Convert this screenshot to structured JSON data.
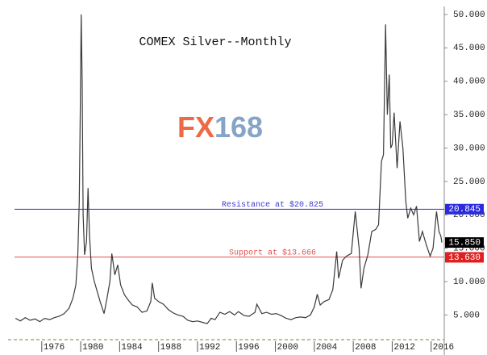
{
  "chart_data": {
    "type": "line",
    "title": "COMEX Silver--Monthly",
    "watermark": [
      "FX",
      "168"
    ],
    "color": "#3a3a3a",
    "x": [
      1973.3,
      1973.8,
      1974.3,
      1974.8,
      1975.3,
      1975.8,
      1976.3,
      1976.8,
      1977.3,
      1977.8,
      1978.3,
      1978.8,
      1979.2,
      1979.5,
      1979.7,
      1979.85,
      1979.95,
      1980.05,
      1980.15,
      1980.25,
      1980.4,
      1980.6,
      1980.75,
      1980.9,
      1981.1,
      1981.4,
      1981.7,
      1982.0,
      1982.4,
      1982.7,
      1983.0,
      1983.2,
      1983.5,
      1983.8,
      1984.1,
      1984.5,
      1984.9,
      1985.3,
      1985.8,
      1986.3,
      1986.8,
      1987.2,
      1987.35,
      1987.6,
      1988.0,
      1988.5,
      1989.0,
      1989.5,
      1990.0,
      1990.5,
      1991.0,
      1991.5,
      1992.0,
      1992.5,
      1993.0,
      1993.4,
      1993.8,
      1994.3,
      1994.8,
      1995.3,
      1995.8,
      1996.2,
      1996.8,
      1997.3,
      1997.9,
      1998.1,
      1998.6,
      1999.1,
      1999.6,
      2000.1,
      2000.6,
      2001.1,
      2001.6,
      2002.1,
      2002.6,
      2003.1,
      2003.6,
      2004.0,
      2004.3,
      2004.6,
      2005.0,
      2005.5,
      2005.9,
      2006.3,
      2006.5,
      2006.9,
      2007.3,
      2007.8,
      2008.2,
      2008.6,
      2008.8,
      2009.1,
      2009.5,
      2009.9,
      2010.3,
      2010.6,
      2010.9,
      2011.1,
      2011.32,
      2011.5,
      2011.7,
      2011.85,
      2012.0,
      2012.2,
      2012.5,
      2012.8,
      2013.1,
      2013.4,
      2013.6,
      2013.9,
      2014.2,
      2014.5,
      2014.8,
      2015.1,
      2015.5,
      2015.9,
      2016.2,
      2016.55,
      2016.8,
      2017.0,
      2017.1
    ],
    "values": [
      4.5,
      4.1,
      4.6,
      4.2,
      4.4,
      4.0,
      4.5,
      4.3,
      4.6,
      4.8,
      5.2,
      6.0,
      7.5,
      9.5,
      14,
      22,
      35,
      50,
      40,
      20,
      14,
      16,
      24,
      17,
      12,
      10,
      8.5,
      7,
      5.2,
      7.5,
      10,
      14.2,
      11,
      12.5,
      9.5,
      8,
      7.2,
      6.5,
      6.2,
      5.4,
      5.6,
      7,
      9.8,
      7.5,
      7,
      6.6,
      5.8,
      5.3,
      5.0,
      4.8,
      4.2,
      4.0,
      4.1,
      3.9,
      3.7,
      4.5,
      4.3,
      5.4,
      5.1,
      5.5,
      5.0,
      5.5,
      4.9,
      4.8,
      5.4,
      6.6,
      5.2,
      5.4,
      5.1,
      5.2,
      4.9,
      4.5,
      4.3,
      4.6,
      4.7,
      4.6,
      5.0,
      6.2,
      8.1,
      6.5,
      7.0,
      7.3,
      8.8,
      14.5,
      10.5,
      13.2,
      13.8,
      14.2,
      20.5,
      15,
      9,
      12,
      14,
      17.5,
      17.8,
      18.5,
      28,
      29,
      48.5,
      35,
      41,
      30,
      30.5,
      35.3,
      27,
      34,
      30,
      22,
      19.5,
      21,
      20,
      21.3,
      16,
      17.5,
      15.5,
      13.8,
      15,
      20.5,
      17.5,
      16.8,
      15.85
    ],
    "xlim": [
      1973.2,
      2017.1
    ],
    "xticks": [
      1976,
      1980,
      1984,
      1988,
      1992,
      1996,
      2000,
      2004,
      2008,
      2012,
      2016
    ],
    "ylim": [
      1.3,
      51.2
    ],
    "yticks": [
      {
        "value": 5,
        "label": "5.000"
      },
      {
        "value": 10,
        "label": "10.000"
      },
      {
        "value": 15,
        "label": "15.000"
      },
      {
        "value": 20,
        "label": "20.000"
      },
      {
        "value": 25,
        "label": "25.000"
      },
      {
        "value": 30,
        "label": "30.000"
      },
      {
        "value": 35,
        "label": "35.000"
      },
      {
        "value": 40,
        "label": "40.000"
      },
      {
        "value": 45,
        "label": "45.000"
      },
      {
        "value": 50,
        "label": "50.000"
      }
    ],
    "hlines": [
      {
        "value": 20.825,
        "label": "Resistance at $20.825",
        "color": "#3a3ad0"
      },
      {
        "value": 13.666,
        "label": "Support at $13.666",
        "color": "#e05050"
      }
    ],
    "price_tags": [
      {
        "value": 20.845,
        "label": "20.845",
        "color": "#2a2ae0"
      },
      {
        "value": 15.85,
        "label": "15.850",
        "color": "#000000"
      },
      {
        "value": 13.63,
        "label": "13.630",
        "color": "#e02020"
      }
    ]
  }
}
